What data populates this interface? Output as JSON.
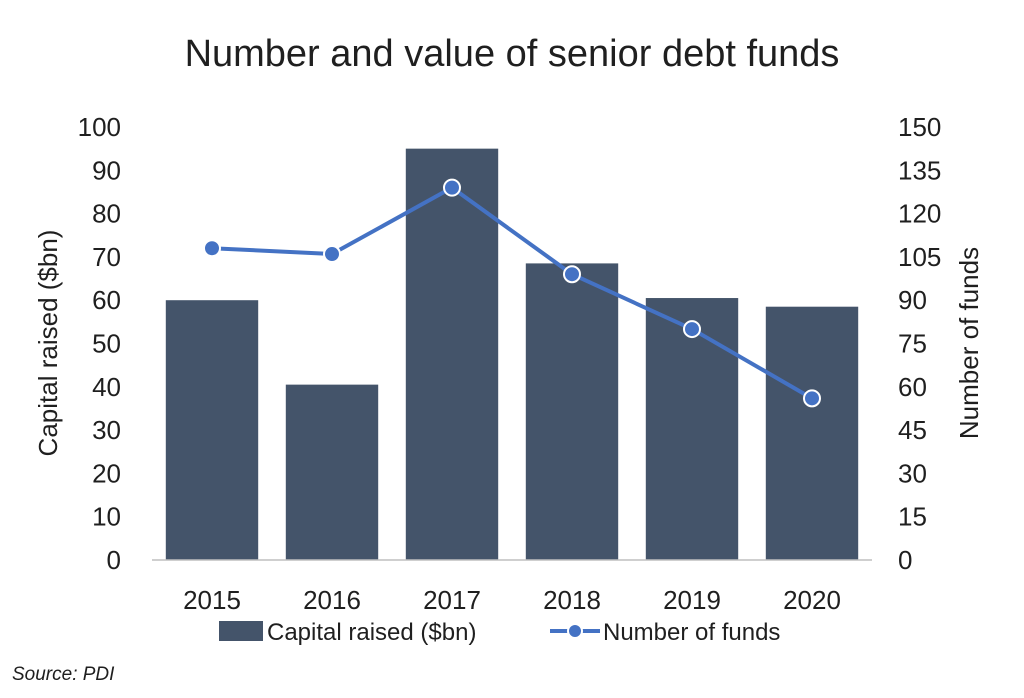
{
  "source_text": "Source: PDI",
  "chart_data": {
    "type": "bar",
    "title": "Number and value of senior debt funds",
    "categories": [
      "2015",
      "2016",
      "2017",
      "2018",
      "2019",
      "2020"
    ],
    "series": [
      {
        "name": "Capital raised ($bn)",
        "type": "bar",
        "axis": "left",
        "color": "#44546a",
        "values": [
          60,
          40.5,
          95,
          68.5,
          60.5,
          58.5
        ]
      },
      {
        "name": "Number of funds",
        "type": "line",
        "axis": "right",
        "color": "#4472c4",
        "values": [
          108,
          106,
          129,
          99,
          80,
          56
        ]
      }
    ],
    "y_left": {
      "label": "Capital raised ($bn)",
      "range": [
        0,
        100
      ],
      "ticks": [
        "0",
        "10",
        "20",
        "30",
        "40",
        "50",
        "60",
        "70",
        "80",
        "90",
        "100"
      ]
    },
    "y_right": {
      "label": "Number of funds",
      "range": [
        0,
        150
      ],
      "ticks": [
        "0",
        "15",
        "30",
        "45",
        "60",
        "75",
        "90",
        "105",
        "120",
        "135",
        "150"
      ]
    },
    "grid": false,
    "legend": "bottom"
  }
}
